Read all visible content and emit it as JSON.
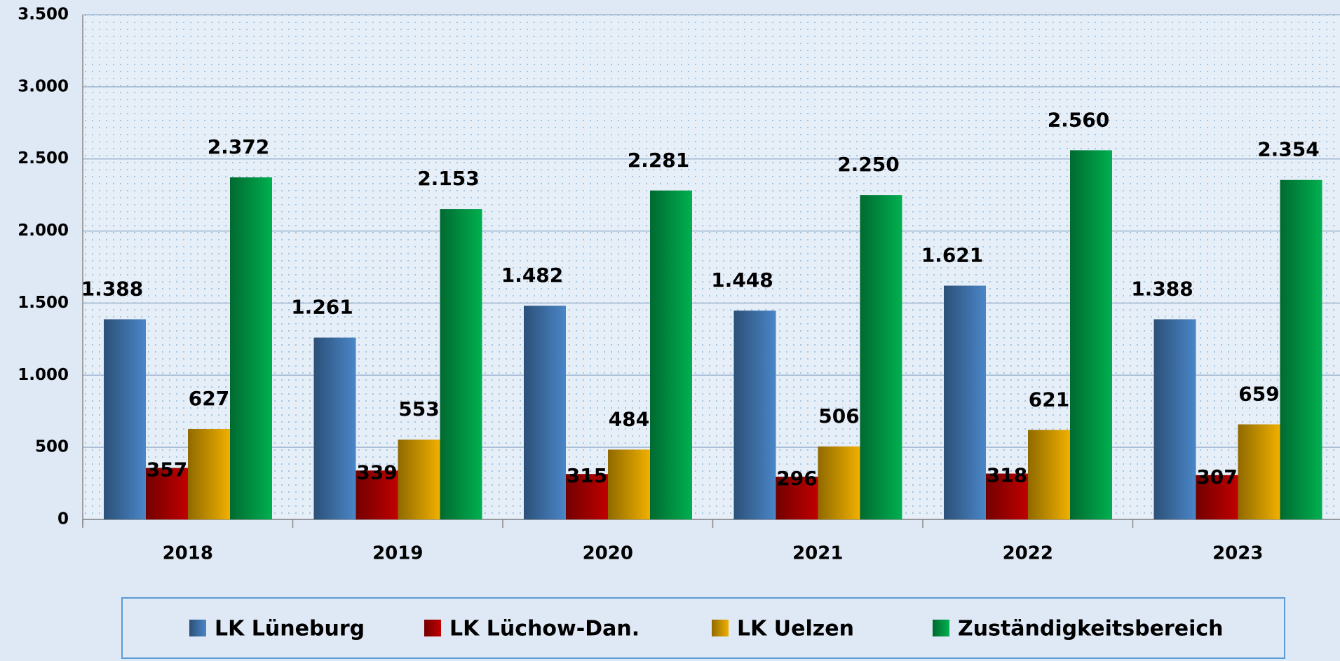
{
  "chart_data": {
    "type": "bar",
    "categories": [
      "2018",
      "2019",
      "2020",
      "2021",
      "2022",
      "2023"
    ],
    "series": [
      {
        "name": "LK Lüneburg",
        "color": "#4a86c8",
        "values": [
          1388,
          1261,
          1482,
          1448,
          1621,
          1388
        ],
        "value_labels": [
          "1.388",
          "1.261",
          "1.482",
          "1.448",
          "1.621",
          "1.388"
        ]
      },
      {
        "name": "LK Lüchow-Dan.",
        "color": "#c00000",
        "values": [
          357,
          339,
          315,
          296,
          318,
          307
        ]
      },
      {
        "name": "LK Uelzen",
        "color": "#f0b000",
        "values": [
          627,
          553,
          484,
          506,
          621,
          659
        ]
      },
      {
        "name": "Zuständigkeitsbereich",
        "color": "#00b050",
        "values": [
          2372,
          2153,
          2281,
          2250,
          2560,
          2354
        ],
        "value_labels": [
          "2.372",
          "2.153",
          "2.281",
          "2.250",
          "2.560",
          "2.354"
        ]
      }
    ],
    "ylim": [
      0,
      3500
    ],
    "yticks": [
      0,
      {
        "value": 500,
        "label": "500"
      },
      {
        "value": 1000,
        "label": "1.000"
      },
      {
        "value": 1500,
        "label": "1.500"
      },
      {
        "value": 2000,
        "label": "2.000"
      },
      {
        "value": 2500,
        "label": "2.500"
      },
      {
        "value": 3000,
        "label": "3.000"
      },
      {
        "value": 3500,
        "label": "3.500"
      }
    ],
    "grid": true,
    "legend": "bottom"
  }
}
